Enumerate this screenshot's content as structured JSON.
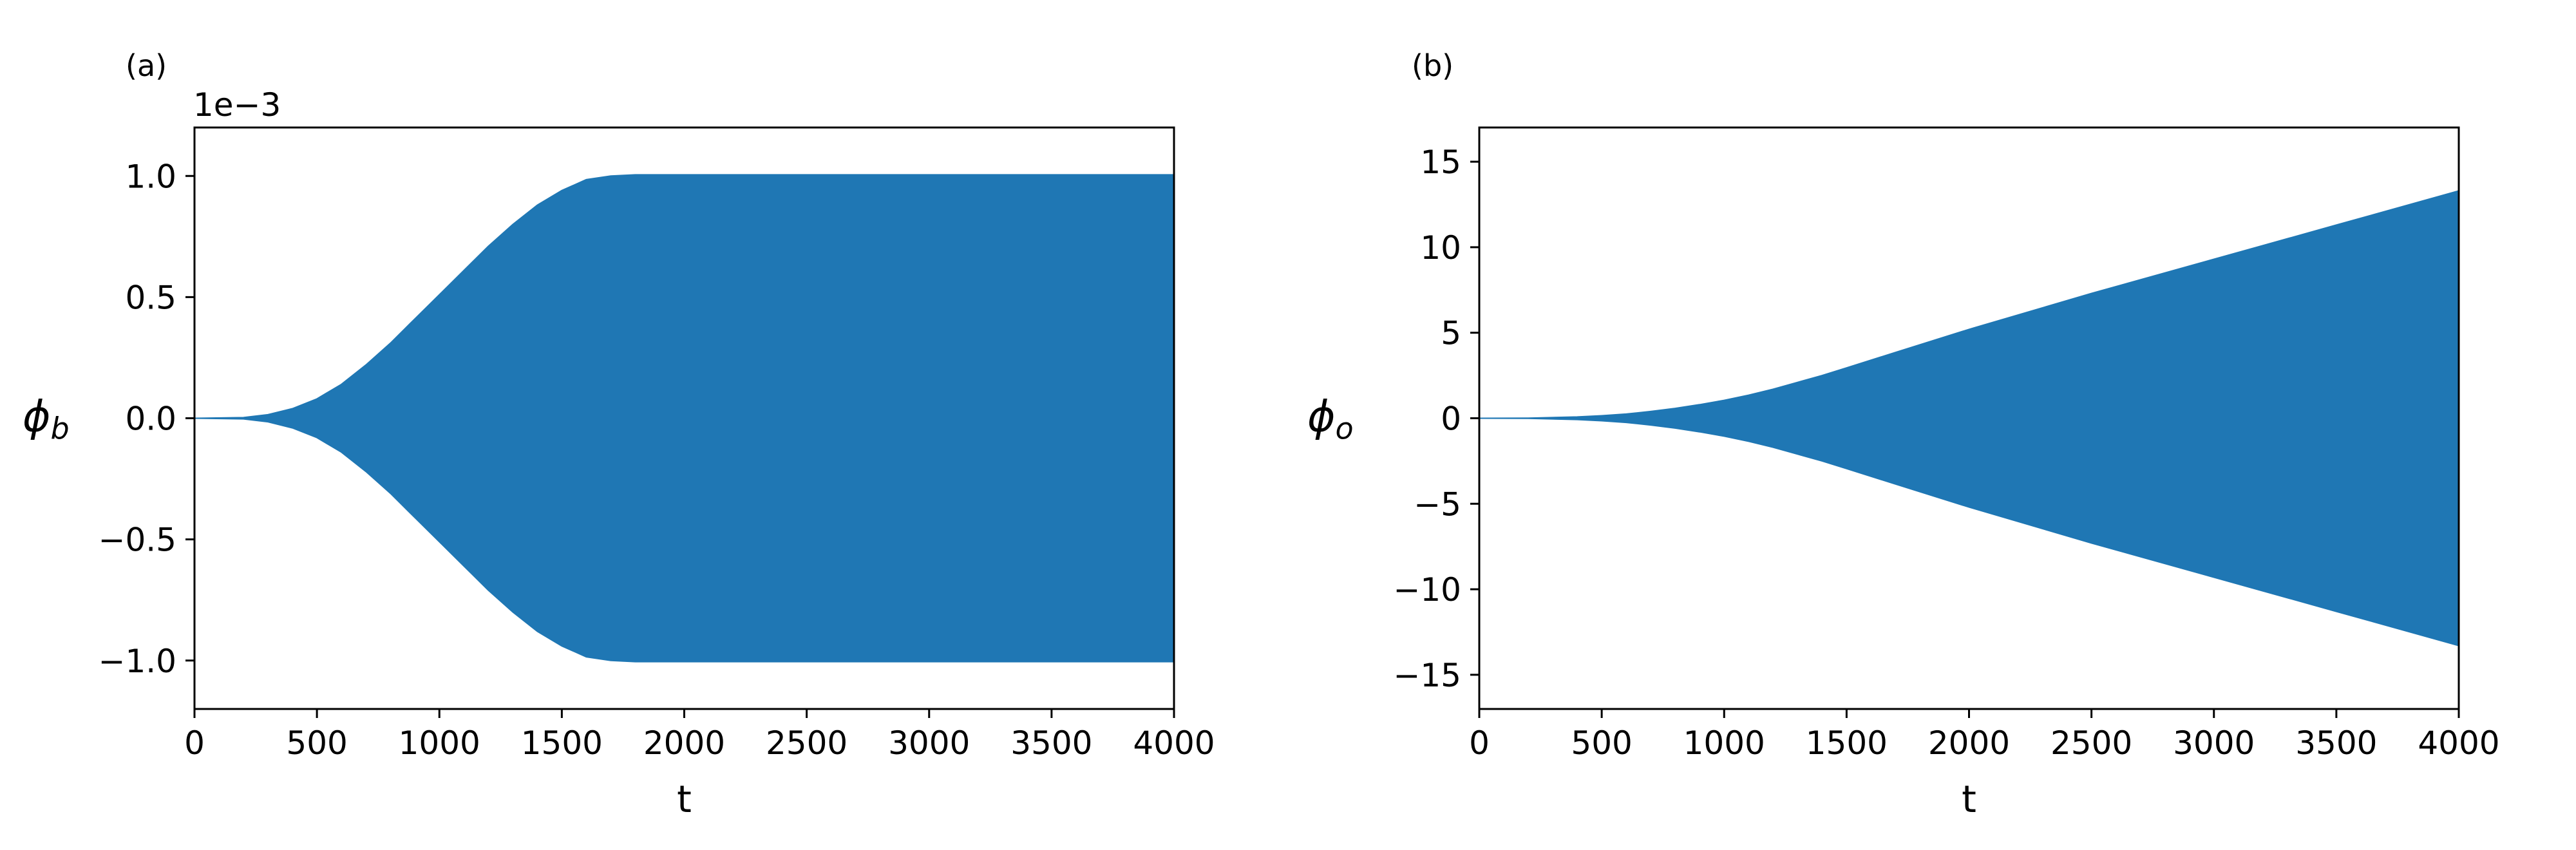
{
  "chart_data": [
    {
      "type": "area",
      "panel_label": "(a)",
      "xlabel": "t",
      "ylabel": {
        "symbol": "ϕ",
        "subscript": "b"
      },
      "y_offset_label": "1e−3",
      "xlim": [
        0,
        4000
      ],
      "ylim": [
        -1.2,
        1.2
      ],
      "xticks": [
        0,
        500,
        1000,
        1500,
        2000,
        2500,
        3000,
        3500,
        4000
      ],
      "xtick_labels": [
        "0",
        "500",
        "1000",
        "1500",
        "2000",
        "2500",
        "3000",
        "3500",
        "4000"
      ],
      "yticks": [
        -1.0,
        -0.5,
        0.0,
        0.5,
        1.0
      ],
      "ytick_labels": [
        "−1.0",
        "−0.5",
        "0.0",
        "0.5",
        "1.0"
      ],
      "grid": false,
      "color": "#1f77b4",
      "series": [
        {
          "envelope": "symmetric",
          "x": [
            0,
            200,
            300,
            400,
            500,
            600,
            700,
            800,
            900,
            1000,
            1100,
            1200,
            1300,
            1400,
            1500,
            1600,
            1700,
            1800,
            2000,
            2500,
            3000,
            3500,
            4000
          ],
          "upper": [
            0.0,
            0.003,
            0.015,
            0.04,
            0.08,
            0.14,
            0.22,
            0.31,
            0.41,
            0.51,
            0.61,
            0.71,
            0.8,
            0.88,
            0.94,
            0.985,
            1.0,
            1.005,
            1.005,
            1.005,
            1.005,
            1.005,
            1.005
          ]
        }
      ]
    },
    {
      "type": "area",
      "panel_label": "(b)",
      "xlabel": "t",
      "ylabel": {
        "symbol": "ϕ",
        "subscript": "o"
      },
      "xlim": [
        0,
        4000
      ],
      "ylim": [
        -17,
        17
      ],
      "xticks": [
        0,
        500,
        1000,
        1500,
        2000,
        2500,
        3000,
        3500,
        4000
      ],
      "xtick_labels": [
        "0",
        "500",
        "1000",
        "1500",
        "2000",
        "2500",
        "3000",
        "3500",
        "4000"
      ],
      "yticks": [
        -15,
        -10,
        -5,
        0,
        5,
        10,
        15
      ],
      "ytick_labels": [
        "−15",
        "−10",
        "−5",
        "0",
        "5",
        "10",
        "15"
      ],
      "grid": false,
      "color": "#1f77b4",
      "series": [
        {
          "envelope": "symmetric",
          "x": [
            0,
            200,
            400,
            500,
            600,
            700,
            800,
            900,
            1000,
            1100,
            1200,
            1300,
            1400,
            1500,
            1700,
            2000,
            2500,
            3000,
            3500,
            4000
          ],
          "upper": [
            0.0,
            0.01,
            0.08,
            0.15,
            0.25,
            0.4,
            0.58,
            0.8,
            1.05,
            1.35,
            1.7,
            2.1,
            2.5,
            2.95,
            3.85,
            5.2,
            7.3,
            9.3,
            11.3,
            13.3
          ]
        }
      ]
    }
  ]
}
